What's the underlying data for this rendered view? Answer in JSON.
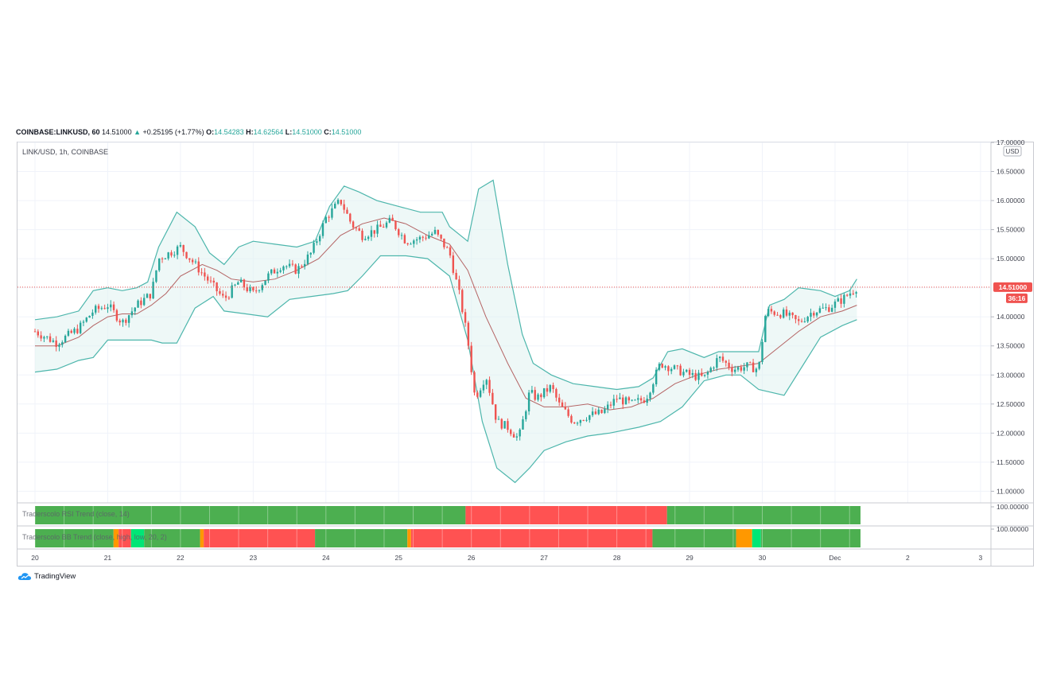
{
  "header": {
    "symbol": "COINBASE:LINKUSD, 60",
    "last": "14.51000",
    "change": "+0.25195 (+1.77%)",
    "open_label": "O:",
    "open": "14.54283",
    "high_label": "H:",
    "high": "14.62564",
    "low_label": "L:",
    "low": "14.51000",
    "close_label": "C:",
    "close": "14.51000",
    "up_arrow": "▲"
  },
  "pane_title": "LINK/USD, 1h, COINBASE",
  "currency_badge": "USD",
  "price_label": "14.51000",
  "countdown_label": "36:16",
  "indicators": {
    "rsi_label": "Traderscolo RSI Trend (close, 14)",
    "rsi_value": "100.00000",
    "bb_label": "Traderscolo BB Trend (close, high, low, 20, 2)",
    "bb_value": "100.00000"
  },
  "brand": "TradingView",
  "colors": {
    "up": "#26a69a",
    "down": "#ef5350",
    "band": "#4db6ac",
    "basis": "#b46464",
    "trend_green": "#4caf50",
    "trend_red": "#ff5252",
    "trend_orange": "#ff9800",
    "trend_teal": "#00e676",
    "price_tag": "#f05350"
  },
  "chart_data": {
    "type": "candlestick",
    "title": "LINK/USD, 1h, COINBASE",
    "ylim": [
      10.8,
      17.0
    ],
    "y_ticks": [
      "17.00000",
      "16.50000",
      "16.00000",
      "15.50000",
      "15.00000",
      "14.51000",
      "14.00000",
      "13.50000",
      "13.00000",
      "12.50000",
      "12.00000",
      "11.50000",
      "11.00000"
    ],
    "x_ticks": [
      "20",
      "21",
      "22",
      "23",
      "24",
      "25",
      "26",
      "27",
      "28",
      "29",
      "30",
      "Dec",
      "2",
      "3"
    ],
    "last_price": 14.51,
    "close_path": [
      [
        20.0,
        13.75
      ],
      [
        20.3,
        13.55
      ],
      [
        20.6,
        13.8
      ],
      [
        20.8,
        14.1
      ],
      [
        21.0,
        14.2
      ],
      [
        21.2,
        13.9
      ],
      [
        21.4,
        14.2
      ],
      [
        21.6,
        14.4
      ],
      [
        21.7,
        15.0
      ],
      [
        22.0,
        15.2
      ],
      [
        22.2,
        14.9
      ],
      [
        22.4,
        14.6
      ],
      [
        22.6,
        14.3
      ],
      [
        22.8,
        14.6
      ],
      [
        23.0,
        14.4
      ],
      [
        23.2,
        14.7
      ],
      [
        23.4,
        14.9
      ],
      [
        23.6,
        14.8
      ],
      [
        23.8,
        15.1
      ],
      [
        24.0,
        15.7
      ],
      [
        24.2,
        16.0
      ],
      [
        24.35,
        15.6
      ],
      [
        24.5,
        15.4
      ],
      [
        24.7,
        15.5
      ],
      [
        24.9,
        15.65
      ],
      [
        25.1,
        15.3
      ],
      [
        25.3,
        15.35
      ],
      [
        25.5,
        15.45
      ],
      [
        25.7,
        15.1
      ],
      [
        25.85,
        14.3
      ],
      [
        25.95,
        13.6
      ],
      [
        26.05,
        12.6
      ],
      [
        26.2,
        13.0
      ],
      [
        26.35,
        12.2
      ],
      [
        26.5,
        12.1
      ],
      [
        26.65,
        11.9
      ],
      [
        26.8,
        12.7
      ],
      [
        26.9,
        12.6
      ],
      [
        27.1,
        12.8
      ],
      [
        27.2,
        12.5
      ],
      [
        27.4,
        12.2
      ],
      [
        27.6,
        12.3
      ],
      [
        27.8,
        12.35
      ],
      [
        28.0,
        12.6
      ],
      [
        28.2,
        12.5
      ],
      [
        28.4,
        12.6
      ],
      [
        28.6,
        13.2
      ],
      [
        28.8,
        13.1
      ],
      [
        29.0,
        13.0
      ],
      [
        29.2,
        12.95
      ],
      [
        29.4,
        13.3
      ],
      [
        29.6,
        13.1
      ],
      [
        29.8,
        13.15
      ],
      [
        29.95,
        13.1
      ],
      [
        30.05,
        14.1
      ],
      [
        30.3,
        14.05
      ],
      [
        30.5,
        13.9
      ],
      [
        30.7,
        14.1
      ],
      [
        30.9,
        14.15
      ],
      [
        31.1,
        14.3
      ],
      [
        31.3,
        14.51
      ]
    ],
    "bollinger": {
      "length": 20,
      "mult": 2,
      "upper": [
        [
          20.0,
          13.95
        ],
        [
          20.3,
          14.0
        ],
        [
          20.6,
          14.1
        ],
        [
          20.8,
          14.45
        ],
        [
          21.0,
          14.5
        ],
        [
          21.2,
          14.45
        ],
        [
          21.4,
          14.5
        ],
        [
          21.55,
          14.6
        ],
        [
          21.7,
          15.2
        ],
        [
          21.95,
          15.8
        ],
        [
          22.2,
          15.55
        ],
        [
          22.4,
          15.1
        ],
        [
          22.6,
          14.9
        ],
        [
          22.8,
          15.2
        ],
        [
          23.0,
          15.3
        ],
        [
          23.3,
          15.25
        ],
        [
          23.6,
          15.2
        ],
        [
          23.85,
          15.3
        ],
        [
          24.05,
          15.9
        ],
        [
          24.25,
          16.25
        ],
        [
          24.45,
          16.15
        ],
        [
          24.7,
          16.0
        ],
        [
          25.0,
          15.9
        ],
        [
          25.3,
          15.8
        ],
        [
          25.6,
          15.8
        ],
        [
          25.7,
          15.55
        ],
        [
          25.95,
          15.3
        ],
        [
          26.1,
          16.2
        ],
        [
          26.3,
          16.35
        ],
        [
          26.5,
          14.9
        ],
        [
          26.7,
          13.7
        ],
        [
          26.85,
          13.2
        ],
        [
          27.1,
          13.0
        ],
        [
          27.4,
          12.85
        ],
        [
          27.7,
          12.8
        ],
        [
          28.0,
          12.75
        ],
        [
          28.3,
          12.8
        ],
        [
          28.5,
          12.95
        ],
        [
          28.7,
          13.4
        ],
        [
          28.9,
          13.45
        ],
        [
          29.2,
          13.3
        ],
        [
          29.4,
          13.4
        ],
        [
          29.7,
          13.4
        ],
        [
          29.95,
          13.4
        ],
        [
          30.1,
          14.2
        ],
        [
          30.3,
          14.3
        ],
        [
          30.5,
          14.5
        ],
        [
          30.8,
          14.45
        ],
        [
          31.0,
          14.35
        ],
        [
          31.2,
          14.45
        ],
        [
          31.3,
          14.65
        ]
      ],
      "basis": [
        [
          20.0,
          13.5
        ],
        [
          20.3,
          13.5
        ],
        [
          20.6,
          13.65
        ],
        [
          20.8,
          13.85
        ],
        [
          21.0,
          14.0
        ],
        [
          21.2,
          14.05
        ],
        [
          21.4,
          14.05
        ],
        [
          21.6,
          14.2
        ],
        [
          21.8,
          14.4
        ],
        [
          22.0,
          14.7
        ],
        [
          22.3,
          14.9
        ],
        [
          22.5,
          14.8
        ],
        [
          22.7,
          14.65
        ],
        [
          23.0,
          14.6
        ],
        [
          23.3,
          14.65
        ],
        [
          23.6,
          14.8
        ],
        [
          23.9,
          15.0
        ],
        [
          24.2,
          15.4
        ],
        [
          24.5,
          15.6
        ],
        [
          24.8,
          15.7
        ],
        [
          25.1,
          15.6
        ],
        [
          25.4,
          15.4
        ],
        [
          25.7,
          15.25
        ],
        [
          25.95,
          14.8
        ],
        [
          26.2,
          14.0
        ],
        [
          26.5,
          13.2
        ],
        [
          26.75,
          12.6
        ],
        [
          27.0,
          12.45
        ],
        [
          27.3,
          12.45
        ],
        [
          27.6,
          12.5
        ],
        [
          27.9,
          12.4
        ],
        [
          28.2,
          12.45
        ],
        [
          28.5,
          12.6
        ],
        [
          28.8,
          12.85
        ],
        [
          29.1,
          13.0
        ],
        [
          29.4,
          13.1
        ],
        [
          29.7,
          13.15
        ],
        [
          29.95,
          13.2
        ],
        [
          30.2,
          13.45
        ],
        [
          30.5,
          13.75
        ],
        [
          30.8,
          14.0
        ],
        [
          31.1,
          14.1
        ],
        [
          31.3,
          14.2
        ]
      ],
      "lower": [
        [
          20.0,
          13.05
        ],
        [
          20.3,
          13.1
        ],
        [
          20.6,
          13.25
        ],
        [
          20.8,
          13.3
        ],
        [
          21.0,
          13.6
        ],
        [
          21.2,
          13.6
        ],
        [
          21.4,
          13.6
        ],
        [
          21.6,
          13.6
        ],
        [
          21.75,
          13.55
        ],
        [
          21.95,
          13.55
        ],
        [
          22.2,
          14.15
        ],
        [
          22.45,
          14.35
        ],
        [
          22.6,
          14.1
        ],
        [
          22.9,
          14.05
        ],
        [
          23.2,
          14.0
        ],
        [
          23.5,
          14.3
        ],
        [
          23.8,
          14.35
        ],
        [
          24.1,
          14.4
        ],
        [
          24.3,
          14.45
        ],
        [
          24.5,
          14.7
        ],
        [
          24.75,
          15.05
        ],
        [
          25.1,
          15.05
        ],
        [
          25.4,
          15.0
        ],
        [
          25.7,
          14.7
        ],
        [
          25.95,
          13.6
        ],
        [
          26.15,
          12.2
        ],
        [
          26.35,
          11.4
        ],
        [
          26.6,
          11.15
        ],
        [
          26.8,
          11.4
        ],
        [
          27.0,
          11.7
        ],
        [
          27.3,
          11.85
        ],
        [
          27.6,
          11.95
        ],
        [
          27.9,
          12.0
        ],
        [
          28.3,
          12.1
        ],
        [
          28.6,
          12.2
        ],
        [
          28.9,
          12.45
        ],
        [
          29.2,
          12.9
        ],
        [
          29.5,
          13.0
        ],
        [
          29.7,
          13.0
        ],
        [
          29.95,
          12.75
        ],
        [
          30.3,
          12.65
        ],
        [
          30.6,
          13.25
        ],
        [
          30.8,
          13.65
        ],
        [
          31.1,
          13.85
        ],
        [
          31.3,
          13.95
        ]
      ]
    },
    "rsi_trend_segments": [
      {
        "from": 20.0,
        "to": 25.92,
        "state": "green"
      },
      {
        "from": 25.92,
        "to": 28.69,
        "state": "red"
      },
      {
        "from": 28.69,
        "to": 31.35,
        "state": "green"
      }
    ],
    "bb_trend_segments": [
      {
        "from": 20.0,
        "to": 21.08,
        "state": "green"
      },
      {
        "from": 21.08,
        "to": 21.15,
        "state": "orange"
      },
      {
        "from": 21.15,
        "to": 21.32,
        "state": "red"
      },
      {
        "from": 21.32,
        "to": 21.5,
        "state": "teal"
      },
      {
        "from": 21.5,
        "to": 22.27,
        "state": "green"
      },
      {
        "from": 22.27,
        "to": 22.32,
        "state": "orange"
      },
      {
        "from": 22.32,
        "to": 23.85,
        "state": "red"
      },
      {
        "from": 23.85,
        "to": 25.12,
        "state": "green"
      },
      {
        "from": 25.12,
        "to": 25.17,
        "state": "orange"
      },
      {
        "from": 25.17,
        "to": 28.49,
        "state": "red"
      },
      {
        "from": 28.49,
        "to": 29.64,
        "state": "green"
      },
      {
        "from": 29.64,
        "to": 29.86,
        "state": "orange"
      },
      {
        "from": 29.86,
        "to": 29.98,
        "state": "teal"
      },
      {
        "from": 29.98,
        "to": 31.35,
        "state": "green"
      }
    ]
  }
}
